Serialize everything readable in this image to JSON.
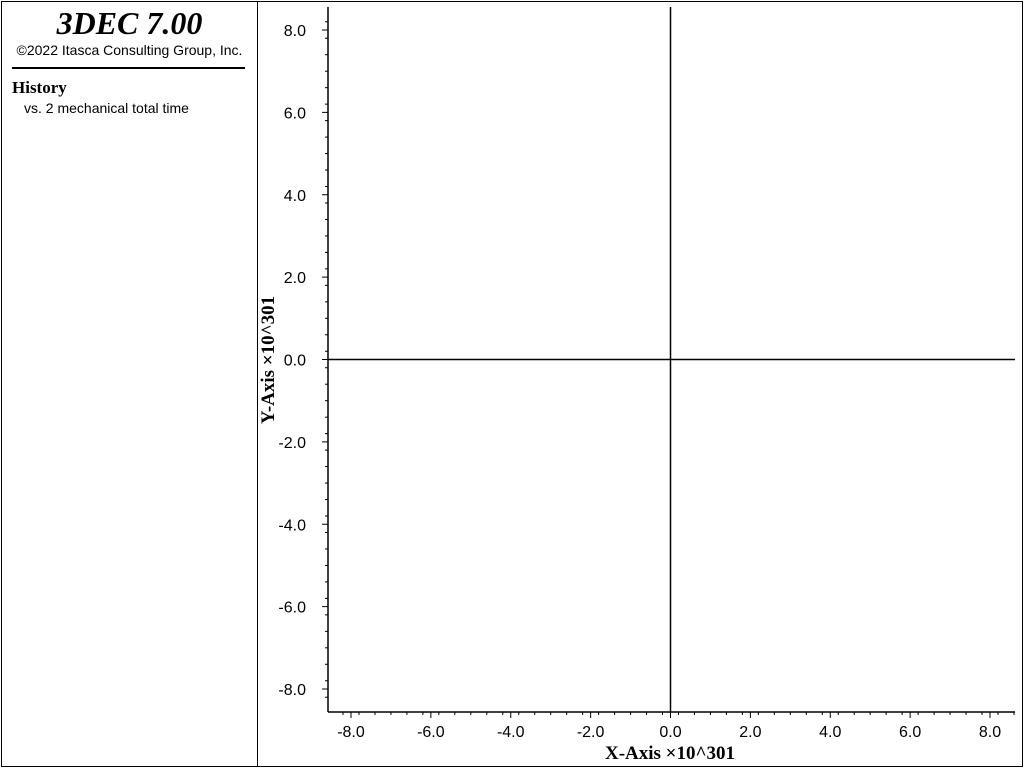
{
  "legend": {
    "app_title": "3DEC 7.00",
    "copyright": "©2022 Itasca Consulting Group, Inc.",
    "heading": "History",
    "subtitle": "vs. 2 mechanical total time"
  },
  "chart_data": {
    "type": "line",
    "title": "",
    "xlabel": "X-Axis ×10^301",
    "ylabel": "Y-Axis ×10^301",
    "xlim": [
      -8.6,
      8.6
    ],
    "ylim": [
      -8.6,
      8.6
    ],
    "x_ticks": [
      -8.0,
      -6.0,
      -4.0,
      -2.0,
      0.0,
      2.0,
      4.0,
      6.0,
      8.0
    ],
    "y_ticks": [
      -8.0,
      -6.0,
      -4.0,
      -2.0,
      0.0,
      2.0,
      4.0,
      6.0,
      8.0
    ],
    "x_tick_labels": [
      "-8.0",
      "-6.0",
      "-4.0",
      "-2.0",
      "0.0",
      "2.0",
      "4.0",
      "6.0",
      "8.0"
    ],
    "y_tick_labels": [
      "-8.0",
      "-6.0",
      "-4.0",
      "-2.0",
      "0.0",
      "2.0",
      "4.0",
      "6.0",
      "8.0"
    ],
    "minor_ticks_per_major": 5,
    "zero_lines": true,
    "grid": false,
    "series": []
  },
  "colors": {
    "axis": "#000000",
    "background": "#ffffff"
  }
}
